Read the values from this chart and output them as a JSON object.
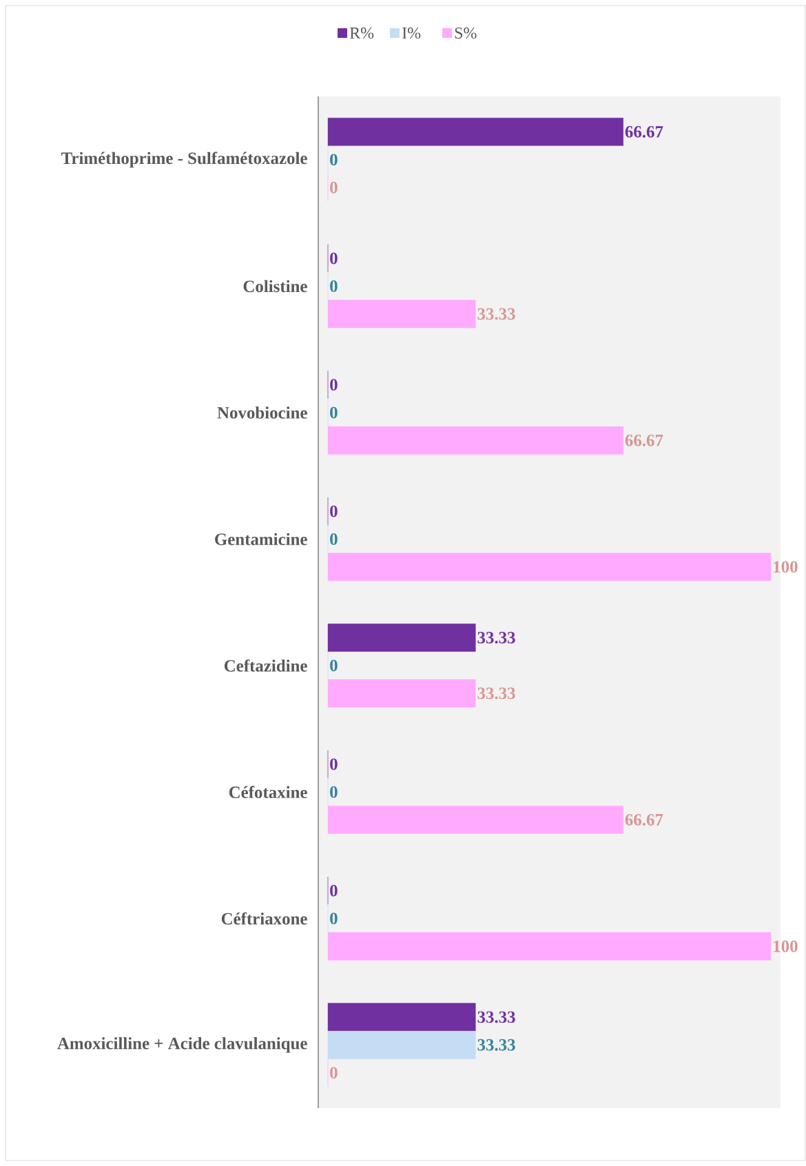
{
  "chart_data": {
    "type": "bar",
    "orientation": "horizontal",
    "categories": [
      "Triméthoprime - Sulfamétoxazole",
      "Colistine",
      "Novobiocine",
      "Gentamicine",
      "Ceftazidine",
      "Céfotaxine",
      "Céftriaxone",
      "Amoxicilline + Acide clavulanique"
    ],
    "series": [
      {
        "name": "R%",
        "color": "#7030a0",
        "values": [
          66.67,
          0,
          0,
          0,
          33.33,
          0,
          0,
          33.33
        ]
      },
      {
        "name": "I%",
        "color": "#c5dcf5",
        "values": [
          0,
          0,
          0,
          0,
          0,
          0,
          0,
          33.33
        ]
      },
      {
        "name": "S%",
        "color": "#ffaaff",
        "values": [
          0,
          33.33,
          66.67,
          100,
          33.33,
          66.67,
          100,
          0
        ]
      }
    ],
    "xlim": [
      0,
      100
    ],
    "data_labels": true,
    "legend": "top",
    "tick_labels": "y"
  }
}
